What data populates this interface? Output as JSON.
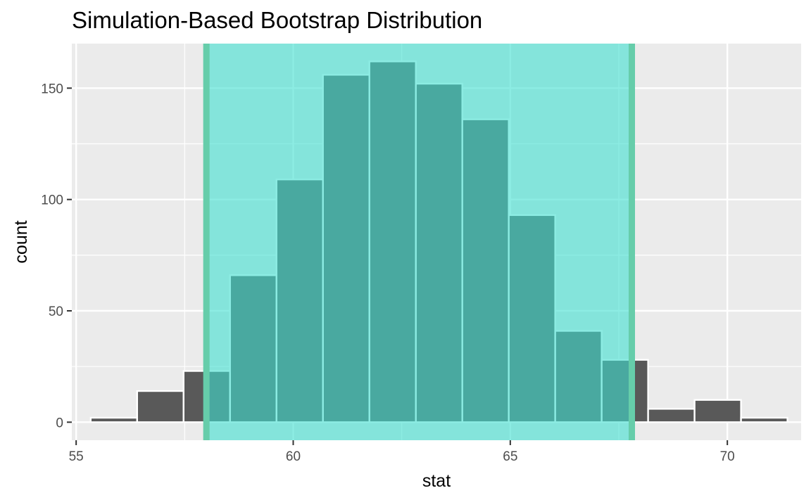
{
  "chart_data": {
    "type": "bar",
    "title": "Simulation-Based Bootstrap Distribution",
    "xlabel": "stat",
    "ylabel": "count",
    "xlim": [
      54.9,
      71.7
    ],
    "ylim": [
      -8.1,
      170
    ],
    "x_ticks": [
      55,
      60,
      65,
      70
    ],
    "x_tick_labels": [
      "55",
      "60",
      "65",
      "70"
    ],
    "y_ticks": [
      0,
      50,
      100,
      150
    ],
    "y_tick_labels": [
      "0",
      "50",
      "100",
      "150"
    ],
    "bin_width": 1.07,
    "bins": [
      {
        "x": 55.87,
        "count": 2
      },
      {
        "x": 56.94,
        "count": 14
      },
      {
        "x": 58.01,
        "count": 23
      },
      {
        "x": 59.08,
        "count": 66
      },
      {
        "x": 60.15,
        "count": 109
      },
      {
        "x": 61.22,
        "count": 156
      },
      {
        "x": 62.29,
        "count": 162
      },
      {
        "x": 63.36,
        "count": 152
      },
      {
        "x": 64.43,
        "count": 136
      },
      {
        "x": 65.5,
        "count": 93
      },
      {
        "x": 66.57,
        "count": 41
      },
      {
        "x": 67.64,
        "count": 28
      },
      {
        "x": 68.71,
        "count": 6
      },
      {
        "x": 69.78,
        "count": 10
      },
      {
        "x": 70.85,
        "count": 2
      }
    ],
    "confidence_interval": {
      "lower": 58.0,
      "upper": 67.8
    },
    "grid": true,
    "colors": {
      "panel": "#ebebeb",
      "grid": "#ffffff",
      "bar_fill": "#595959",
      "bar_outline": "#ffffff",
      "ci_fill": "#40e0d0",
      "ci_line": "#66cdaa"
    }
  }
}
